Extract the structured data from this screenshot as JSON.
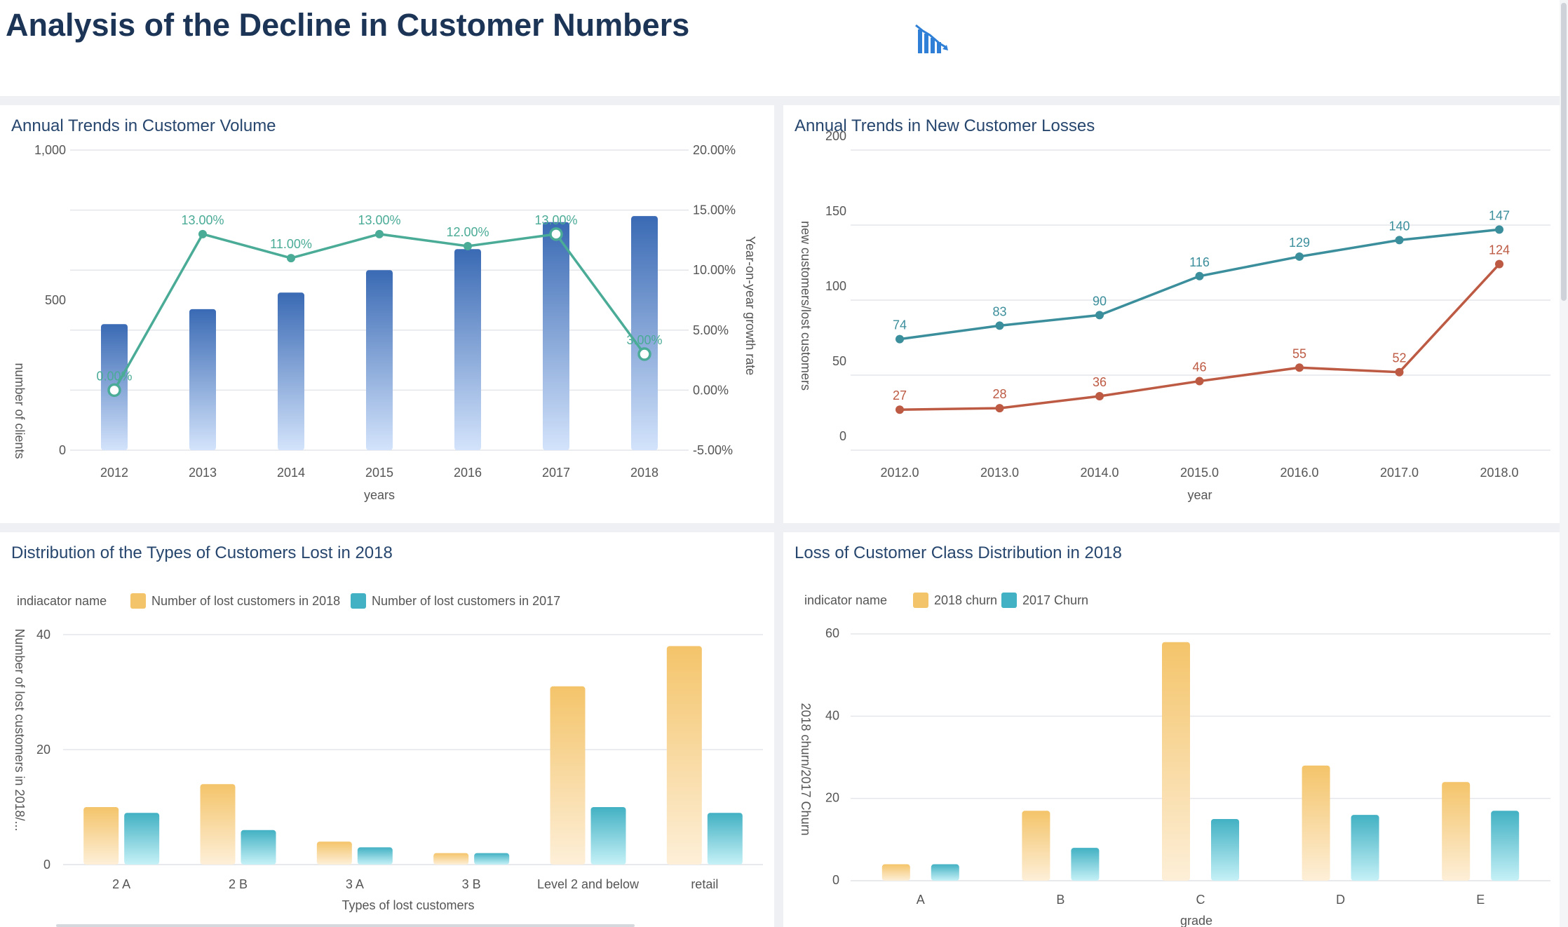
{
  "page": {
    "title": "Analysis of the Decline in Customer Numbers",
    "header_icon": "declining-bar-chart-icon"
  },
  "colors": {
    "title": "#1c3557",
    "panel_title": "#27466e",
    "bar_blue_top": "#3a6ab4",
    "bar_blue_bottom": "#d3e3fb",
    "growth_line": "#4aab97",
    "new_customers_line": "#3b8e9b",
    "lost_customers_line": "#bd5a43",
    "orange_top": "#f4c46a",
    "orange_bottom": "#fdefd8",
    "teal_top": "#42b1c3",
    "teal_bottom": "#c6f1f7"
  },
  "chart_data": [
    {
      "id": "volume",
      "type": "bar+line",
      "title": "Annual Trends in Customer Volume",
      "categories": [
        "2012",
        "2013",
        "2014",
        "2015",
        "2016",
        "2017",
        "2018"
      ],
      "xlabel": "years",
      "ylabel": "number of clients",
      "ylabel_right": "Year-on-year growth rate",
      "ylim": [
        0,
        1000
      ],
      "ylim_right": [
        -5,
        20
      ],
      "yticks": [
        "1,000",
        "500",
        "0"
      ],
      "yticks_right": [
        "20.00%",
        "15.00%",
        "10.00%",
        "5.00%",
        "0.00%",
        "-5.00%"
      ],
      "bars": [
        420,
        470,
        525,
        600,
        670,
        760,
        780
      ],
      "growth": [
        0.0,
        13.0,
        11.0,
        13.0,
        12.0,
        13.0,
        3.0
      ],
      "growth_labels": [
        "0.00%",
        "13.00%",
        "11.00%",
        "13.00%",
        "12.00%",
        "13.00%",
        "3.00%"
      ]
    },
    {
      "id": "losses",
      "type": "line",
      "title": "Annual Trends in New Customer Losses",
      "categories": [
        "2012.0",
        "2013.0",
        "2014.0",
        "2015.0",
        "2016.0",
        "2017.0",
        "2018.0"
      ],
      "xlabel": "year",
      "ylabel": "new customers/lost customers",
      "ylim": [
        0,
        200
      ],
      "yticks": [
        "200",
        "150",
        "100",
        "50",
        "0"
      ],
      "series": [
        {
          "name": "new customers",
          "values": [
            74,
            83,
            90,
            116,
            129,
            140,
            147
          ]
        },
        {
          "name": "lost customers",
          "values": [
            27,
            28,
            36,
            46,
            55,
            52,
            124
          ]
        }
      ]
    },
    {
      "id": "types",
      "type": "bar",
      "title": "Distribution of the Types of Customers Lost in 2018",
      "legend_title": "indiacator name",
      "categories": [
        "2 A",
        "2 B",
        "3 A",
        "3 B",
        "Level 2 and below",
        "retail"
      ],
      "xlabel": "Types of lost customers",
      "ylabel": "Number of lost customers in 2018/...",
      "ylim": [
        0,
        40
      ],
      "yticks": [
        "40",
        "20",
        "0"
      ],
      "series": [
        {
          "name": "Number of lost customers in 2018",
          "values": [
            10,
            14,
            4,
            2,
            31,
            38
          ]
        },
        {
          "name": "Number of lost customers in 2017",
          "values": [
            9,
            6,
            3,
            2,
            10,
            9
          ]
        }
      ]
    },
    {
      "id": "grades",
      "type": "bar",
      "title": "Loss of Customer Class Distribution in 2018",
      "legend_title": "indicator name",
      "categories": [
        "A",
        "B",
        "C",
        "D",
        "E"
      ],
      "xlabel": "grade",
      "ylabel": "2018 churn/2017 Churn",
      "ylim": [
        0,
        60
      ],
      "yticks": [
        "60",
        "40",
        "20",
        "0"
      ],
      "series": [
        {
          "name": "2018 churn",
          "values": [
            4,
            17,
            58,
            28,
            24
          ]
        },
        {
          "name": "2017 Churn",
          "values": [
            4,
            8,
            15,
            16,
            17
          ]
        }
      ]
    }
  ]
}
